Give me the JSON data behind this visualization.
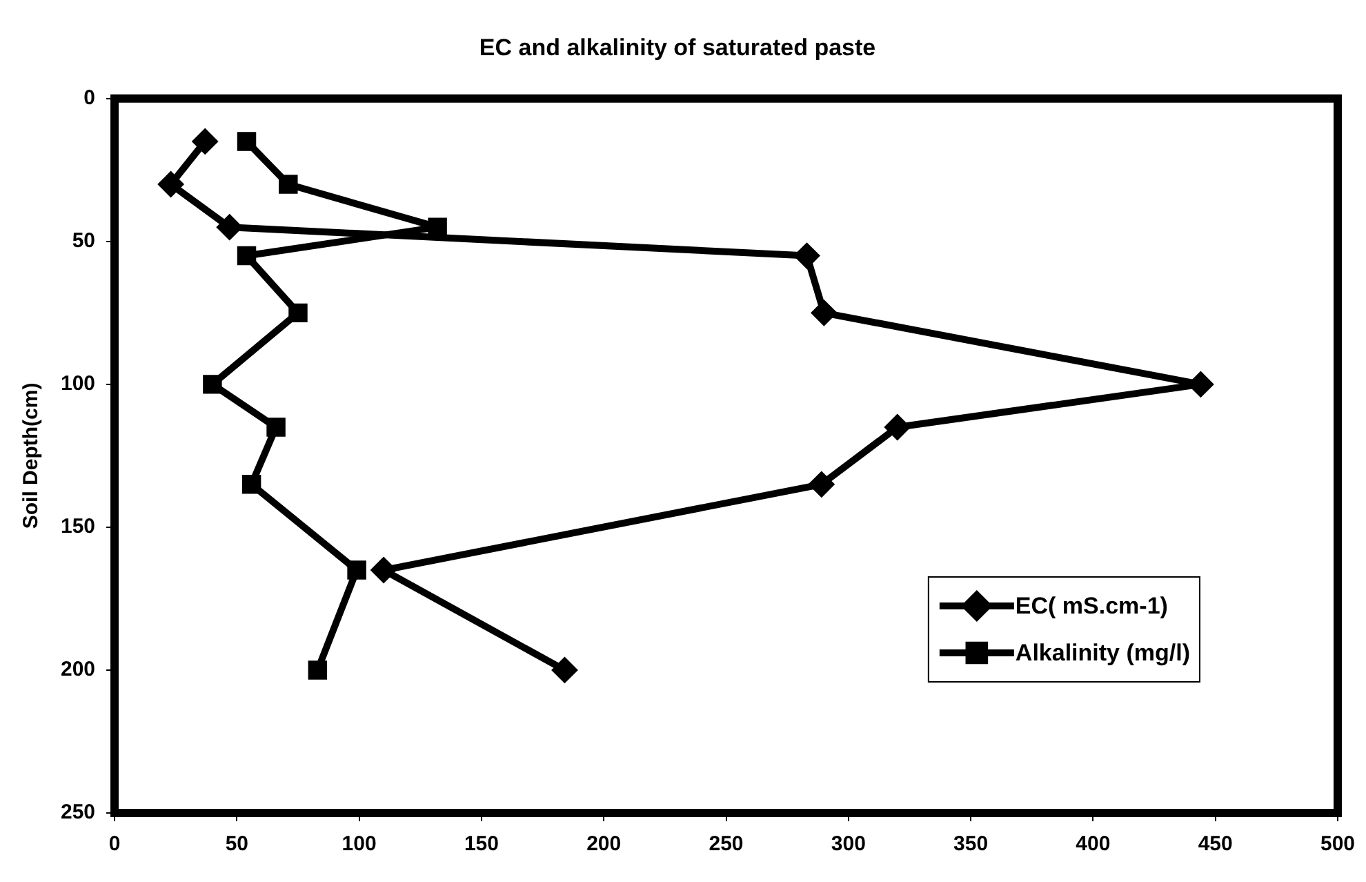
{
  "chart_data": {
    "type": "line",
    "title": "EC and alkalinity of saturated paste",
    "ylabel": "Soil Depth(cm)",
    "xlim": [
      0,
      500
    ],
    "xticks": [
      0,
      50,
      100,
      150,
      200,
      250,
      300,
      350,
      400,
      450,
      500
    ],
    "ylim": [
      250,
      0
    ],
    "yticks": [
      0,
      50,
      100,
      150,
      200,
      250
    ],
    "legend": "bottom right",
    "grid": false,
    "line_style": "solid",
    "series": [
      {
        "name": "EC( mS.cm-1)",
        "color": "#000000",
        "marker": "diamond",
        "x": [
          37,
          23,
          47,
          283,
          290,
          444,
          320,
          289,
          110,
          184
        ],
        "values": [
          15,
          30,
          45,
          55,
          75,
          100,
          115,
          135,
          165,
          200
        ]
      },
      {
        "name": "Alkalinity (mg/l)",
        "color": "#000000",
        "marker": "square",
        "x": [
          54,
          71,
          132,
          54,
          75,
          40,
          66,
          56,
          99,
          83
        ],
        "values": [
          15,
          30,
          45,
          55,
          75,
          100,
          115,
          135,
          165,
          200
        ]
      }
    ]
  }
}
